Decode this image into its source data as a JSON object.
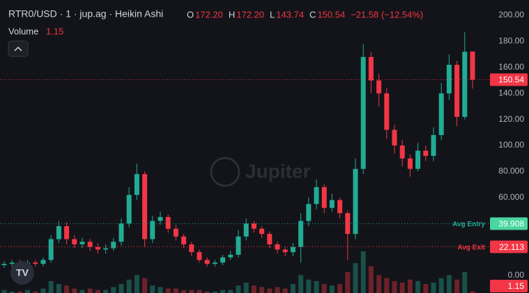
{
  "chart_data": {
    "type": "candlestick",
    "title": "RTR0/USD · 1 · jup.ag · Heikin Ashi",
    "ohlc_legend": [
      {
        "label": "O",
        "value": "172.20"
      },
      {
        "label": "H",
        "value": "172.20"
      },
      {
        "label": "L",
        "value": "143.74"
      },
      {
        "label": "C",
        "value": "150.54"
      }
    ],
    "change": "−21.58 (−12.54%)",
    "volume_label": "Volume",
    "watermark": "Jupiter",
    "up_color": "#22ab94",
    "down_color": "#f23645",
    "open": [
      8,
      9,
      10,
      9,
      10,
      9,
      12,
      28,
      38,
      28,
      24,
      26,
      22,
      20,
      21,
      26,
      40,
      62,
      78,
      28,
      42,
      45,
      36,
      30,
      24,
      18,
      12,
      9,
      10,
      14,
      16,
      30,
      40,
      36,
      32,
      24,
      20,
      18,
      22,
      42,
      55,
      68,
      52,
      58,
      48,
      32,
      82,
      168,
      150,
      140,
      112,
      100,
      90,
      82,
      96,
      92,
      108,
      140,
      162,
      122,
      172.2
    ],
    "high": [
      11,
      12,
      12,
      12,
      12,
      14,
      31,
      42,
      41,
      31,
      29,
      28,
      25,
      24,
      29,
      44,
      68,
      86,
      80,
      46,
      49,
      47,
      39,
      32,
      26,
      20,
      14,
      12,
      16,
      19,
      35,
      44,
      42,
      38,
      34,
      26,
      22,
      25,
      48,
      60,
      74,
      70,
      63,
      60,
      50,
      90,
      178,
      172,
      155,
      144,
      116,
      104,
      93,
      102,
      100,
      114,
      148,
      170,
      165,
      187,
      172.2
    ],
    "low": [
      6,
      7,
      7,
      7,
      7,
      7,
      10,
      25,
      24,
      21,
      21,
      19,
      17,
      17,
      19,
      23,
      37,
      58,
      22,
      25,
      39,
      33,
      27,
      21,
      15,
      10,
      7,
      7,
      8,
      12,
      14,
      27,
      33,
      29,
      21,
      17,
      15,
      15,
      10,
      38,
      51,
      48,
      49,
      44,
      12,
      28,
      78,
      140,
      130,
      105,
      94,
      84,
      76,
      80,
      88,
      88,
      104,
      135,
      115,
      120,
      143.74
    ],
    "close": [
      9,
      10,
      9,
      10,
      9,
      12,
      28,
      38,
      28,
      24,
      26,
      22,
      20,
      21,
      26,
      40,
      62,
      78,
      28,
      42,
      45,
      36,
      30,
      24,
      18,
      12,
      9,
      10,
      14,
      16,
      30,
      40,
      36,
      32,
      24,
      20,
      18,
      22,
      42,
      55,
      68,
      52,
      58,
      48,
      32,
      82,
      168,
      150,
      140,
      112,
      100,
      90,
      82,
      96,
      92,
      108,
      140,
      162,
      122,
      172,
      150.54
    ],
    "volume": [
      2,
      1,
      1,
      2,
      1,
      3,
      8,
      6,
      5,
      3,
      2,
      3,
      2,
      2,
      4,
      6,
      9,
      12,
      10,
      5,
      4,
      3,
      3,
      2,
      2,
      2,
      1,
      1,
      2,
      2,
      5,
      7,
      5,
      4,
      3,
      4,
      3,
      6,
      12,
      9,
      8,
      6,
      5,
      6,
      14,
      20,
      28,
      18,
      12,
      10,
      8,
      7,
      9,
      8,
      6,
      7,
      10,
      12,
      9,
      14,
      1.15
    ],
    "ylim": [
      -13.4,
      211.8
    ],
    "yticks": [
      {
        "value": 0,
        "label": "0.00"
      },
      {
        "value": 60,
        "label": "60.000"
      },
      {
        "value": 80,
        "label": "80.000"
      },
      {
        "value": 100,
        "label": "100.00"
      },
      {
        "value": 120,
        "label": "120.00"
      },
      {
        "value": 140,
        "label": "140.00"
      },
      {
        "value": 160,
        "label": "160.00"
      },
      {
        "value": 180,
        "label": "180.00"
      },
      {
        "value": 200,
        "label": "200.00"
      }
    ],
    "last_price": 150.54,
    "price_lines": [
      {
        "name": "Avg Entry",
        "value": 39.908,
        "color": "#22ab94"
      },
      {
        "name": "Avg Exit",
        "value": 22.113,
        "color": "#f23645"
      }
    ]
  }
}
